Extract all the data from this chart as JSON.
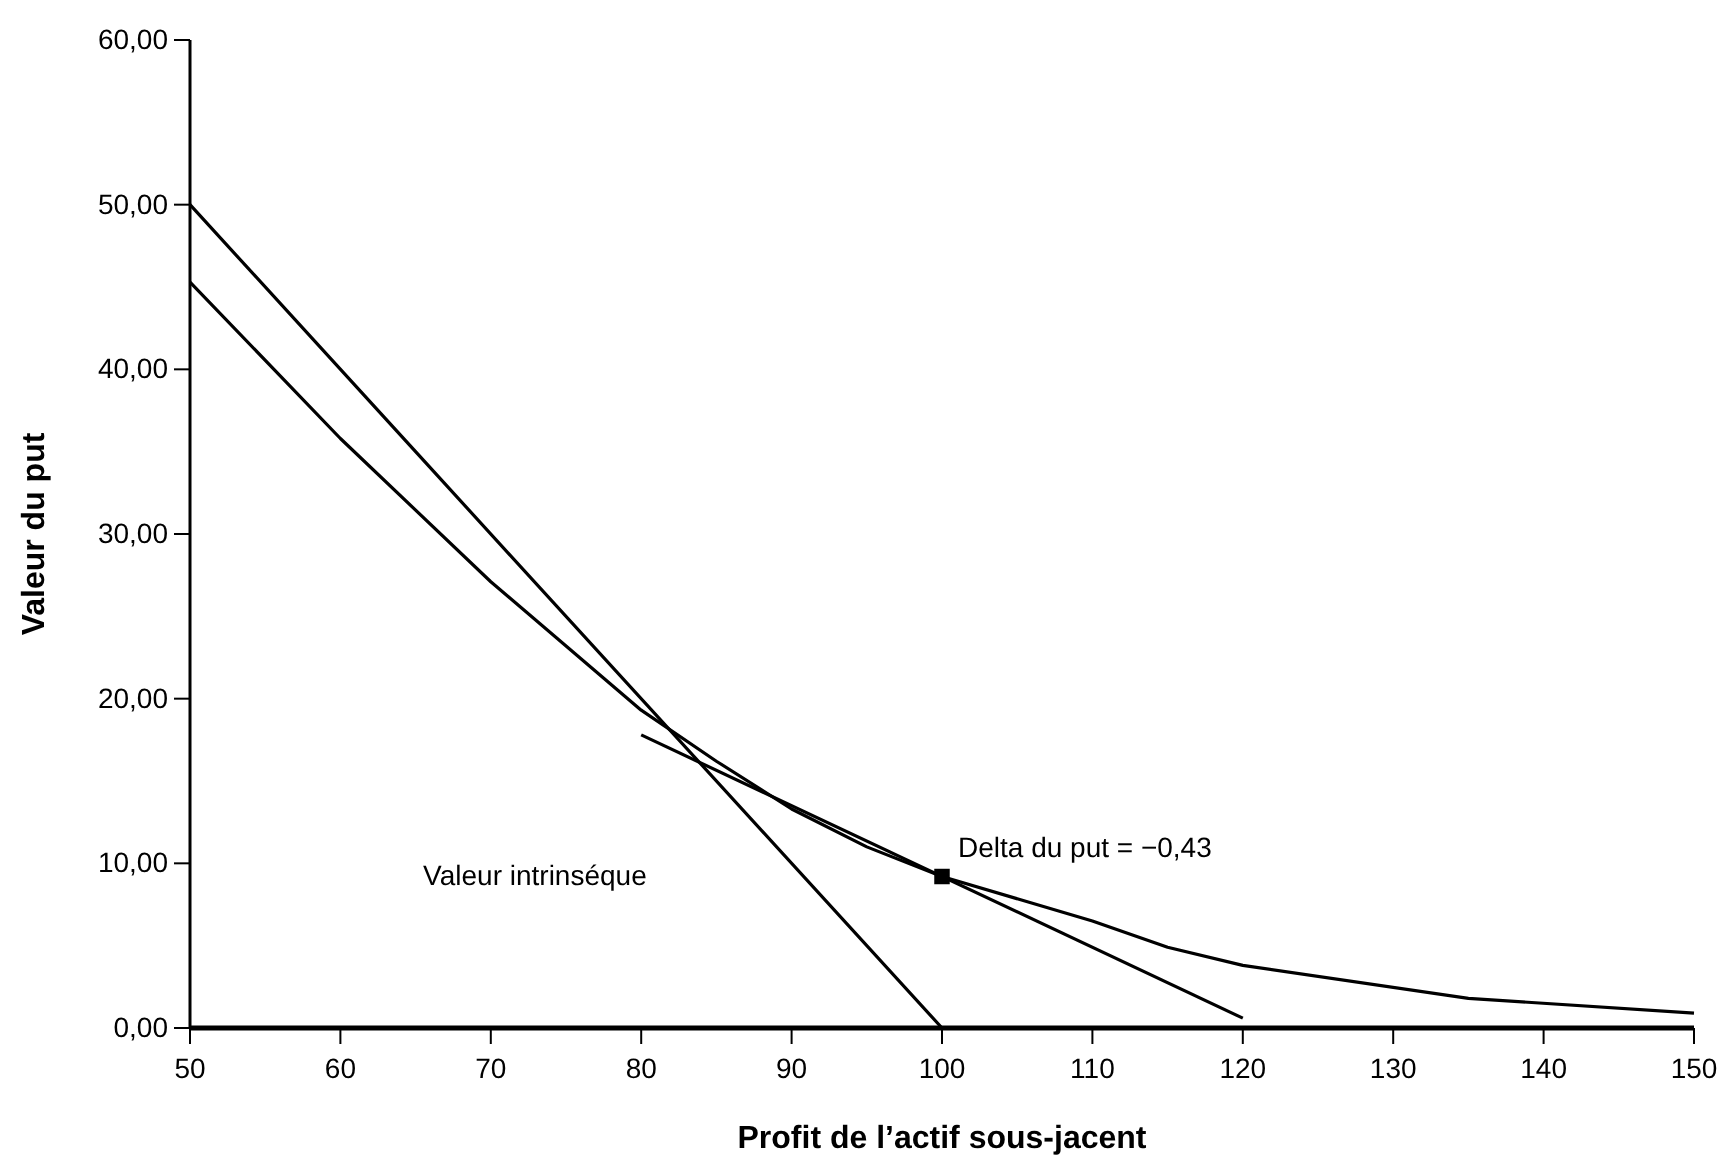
{
  "chart_data": {
    "type": "line",
    "xlabel": "Profit de l’actif sous-jacent",
    "ylabel": "Valeur du put",
    "xlim": [
      50,
      150
    ],
    "xticks": [
      50,
      60,
      70,
      80,
      90,
      100,
      110,
      120,
      130,
      140,
      150
    ],
    "ylim": [
      0,
      60
    ],
    "yticks": [
      {
        "value": 0,
        "label": "0,00"
      },
      {
        "value": 10,
        "label": "10,00"
      },
      {
        "value": 20,
        "label": "20,00"
      },
      {
        "value": 30,
        "label": "30,00"
      },
      {
        "value": 40,
        "label": "40,00"
      },
      {
        "value": 50,
        "label": "50,00"
      },
      {
        "value": 60,
        "label": "60,00"
      }
    ],
    "grid": false,
    "marker": "none",
    "line_style": "solid",
    "series": [
      {
        "color": "#000000",
        "x": [
          50,
          65,
          100,
          150
        ],
        "values": [
          50,
          35,
          0,
          0
        ]
      },
      {
        "color": "#000000",
        "x": [
          50,
          60,
          70,
          80,
          85,
          90,
          95,
          100,
          110,
          115,
          120,
          135,
          150
        ],
        "values": [
          45.3,
          35.8,
          27.1,
          19.3,
          16.2,
          13.3,
          11,
          9.2,
          6.5,
          4.9,
          3.8,
          1.8,
          0.9
        ]
      },
      {
        "color": "#000000",
        "x": [
          80,
          120
        ],
        "values": [
          17.8,
          0.6
        ]
      },
      {
        "type": "scatter",
        "marker": "square",
        "color": "#000000",
        "x": [
          100
        ],
        "values": [
          9.2
        ]
      }
    ],
    "annotations": [
      {
        "text": "Delta du put = −0,43",
        "x": 100,
        "y": 9.2
      },
      "Valeur intrinséque"
    ]
  }
}
